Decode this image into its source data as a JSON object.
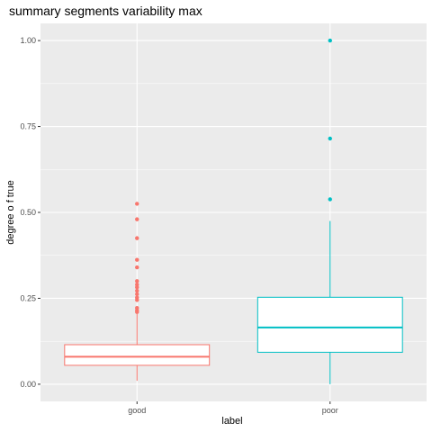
{
  "chart_data": {
    "type": "boxplot",
    "title": "summary segments variability max",
    "xlabel": "label",
    "ylabel": "degree o f true",
    "ylim": [
      -0.05,
      1.05
    ],
    "y_ticks": [
      "0.00",
      "0.25",
      "0.50",
      "0.75",
      "1.00"
    ],
    "y_tick_values": [
      0,
      0.25,
      0.5,
      0.75,
      1.0
    ],
    "grid": true,
    "panel_background": "#ebebeb",
    "grid_color": "#ffffff",
    "categories": [
      "good",
      "poor"
    ],
    "series": [
      {
        "category": "good",
        "color": "#f8766d",
        "whisker_low": 0.01,
        "q1": 0.055,
        "median": 0.08,
        "q3": 0.115,
        "whisker_high": 0.205,
        "outliers": [
          0.525,
          0.48,
          0.425,
          0.362,
          0.34,
          0.3,
          0.29,
          0.282,
          0.272,
          0.262,
          0.252,
          0.245,
          0.222,
          0.215,
          0.21
        ]
      },
      {
        "category": "poor",
        "color": "#00bfc4",
        "whisker_low": 0.0,
        "q1": 0.093,
        "median": 0.165,
        "q3": 0.253,
        "whisker_high": 0.475,
        "outliers": [
          1.0,
          0.715,
          0.538
        ]
      }
    ]
  }
}
